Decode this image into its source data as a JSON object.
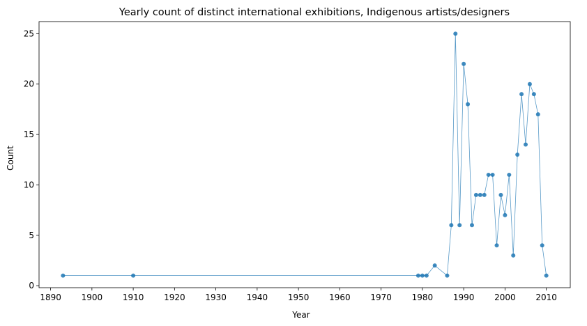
{
  "chart_data": {
    "type": "line",
    "title": "Yearly count of distinct international exhibitions, Indigenous artists/designers",
    "xlabel": "Year",
    "ylabel": "Count",
    "xlim": [
      1887.2,
      2015.8
    ],
    "ylim": [
      -0.2,
      26.2
    ],
    "xticks": [
      1890,
      1900,
      1910,
      1920,
      1930,
      1940,
      1950,
      1960,
      1970,
      1980,
      1990,
      2000,
      2010
    ],
    "yticks": [
      0,
      5,
      10,
      15,
      20,
      25
    ],
    "grid": false,
    "legend": "none",
    "line_color": "#1f77b4",
    "marker_color": "#1f77b4",
    "series": [
      {
        "x": [
          1893,
          1910,
          1979,
          1980,
          1981,
          1983,
          1986,
          1987,
          1988,
          1989,
          1990,
          1991,
          1992,
          1993,
          1994,
          1995,
          1996,
          1997,
          1998,
          1999,
          2000,
          2001,
          2002,
          2003,
          2004,
          2005,
          2006,
          2007,
          2008,
          2009,
          2010
        ],
        "y": [
          1,
          1,
          1,
          1,
          1,
          2,
          1,
          6,
          25,
          6,
          22,
          18,
          6,
          9,
          9,
          9,
          11,
          11,
          4,
          9,
          7,
          11,
          3,
          13,
          19,
          14,
          20,
          19,
          17,
          4,
          1
        ]
      }
    ]
  }
}
